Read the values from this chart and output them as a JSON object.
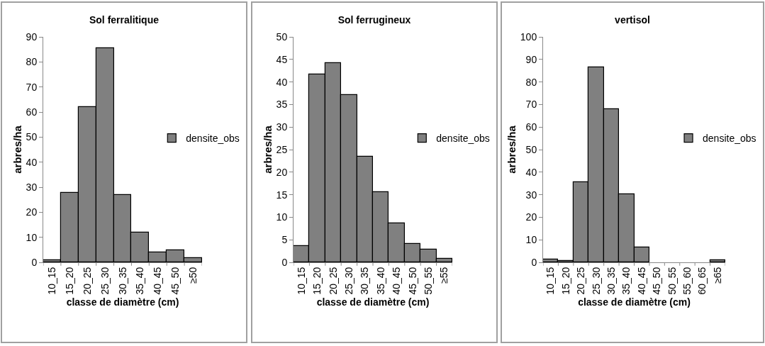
{
  "chart_data": [
    {
      "type": "bar",
      "title": "Sol ferralitique",
      "xlabel": "classe de diamètre (cm)",
      "ylabel": "arbres/ha",
      "categories": [
        "10_15",
        "15_20",
        "20_25",
        "25_30",
        "30_35",
        "35_40",
        "40_45",
        "45_50",
        "≥50"
      ],
      "series": [
        {
          "name": "densite_obs",
          "color": "#808080",
          "values": [
            0.8,
            27.7,
            62,
            85.6,
            27,
            12,
            4,
            4.8,
            1.6
          ]
        }
      ],
      "ylim": [
        0,
        90
      ],
      "yticks": [
        0,
        10,
        20,
        30,
        40,
        50,
        60,
        70,
        80,
        90
      ],
      "grid": false,
      "legend": "right"
    },
    {
      "type": "bar",
      "title": "Sol ferrugineux",
      "xlabel": "classe de diamètre (cm)",
      "ylabel": "arbres/ha",
      "categories": [
        "10_15",
        "15_20",
        "20_25",
        "25_30",
        "30_35",
        "35_40",
        "40_45",
        "45_50",
        "50_55",
        "≥55"
      ],
      "series": [
        {
          "name": "densite_obs",
          "color": "#808080",
          "values": [
            3.6,
            41.7,
            44.2,
            37.1,
            23.4,
            15.6,
            8.6,
            4.1,
            2.9,
            0.8
          ]
        }
      ],
      "ylim": [
        0,
        50
      ],
      "yticks": [
        0,
        5,
        10,
        15,
        20,
        25,
        30,
        35,
        40,
        45,
        50
      ],
      "grid": false,
      "legend": "right"
    },
    {
      "type": "bar",
      "title": "vertisol",
      "xlabel": "classe de diamètre (cm)",
      "ylabel": "arbres/ha",
      "categories": [
        "10_15",
        "15_20",
        "20_25",
        "25_30",
        "30_35",
        "35_40",
        "40_45",
        "45_50",
        "50_55",
        "55_60",
        "60_65",
        "≥65"
      ],
      "series": [
        {
          "name": "densite_obs",
          "color": "#808080",
          "values": [
            1.2,
            0.6,
            35.4,
            86.6,
            68,
            30.3,
            6.5,
            0,
            0,
            0,
            0,
            0.8
          ]
        }
      ],
      "ylim": [
        0,
        100
      ],
      "yticks": [
        0,
        10,
        20,
        30,
        40,
        50,
        60,
        70,
        80,
        90,
        100
      ],
      "grid": false,
      "legend": "right"
    }
  ]
}
